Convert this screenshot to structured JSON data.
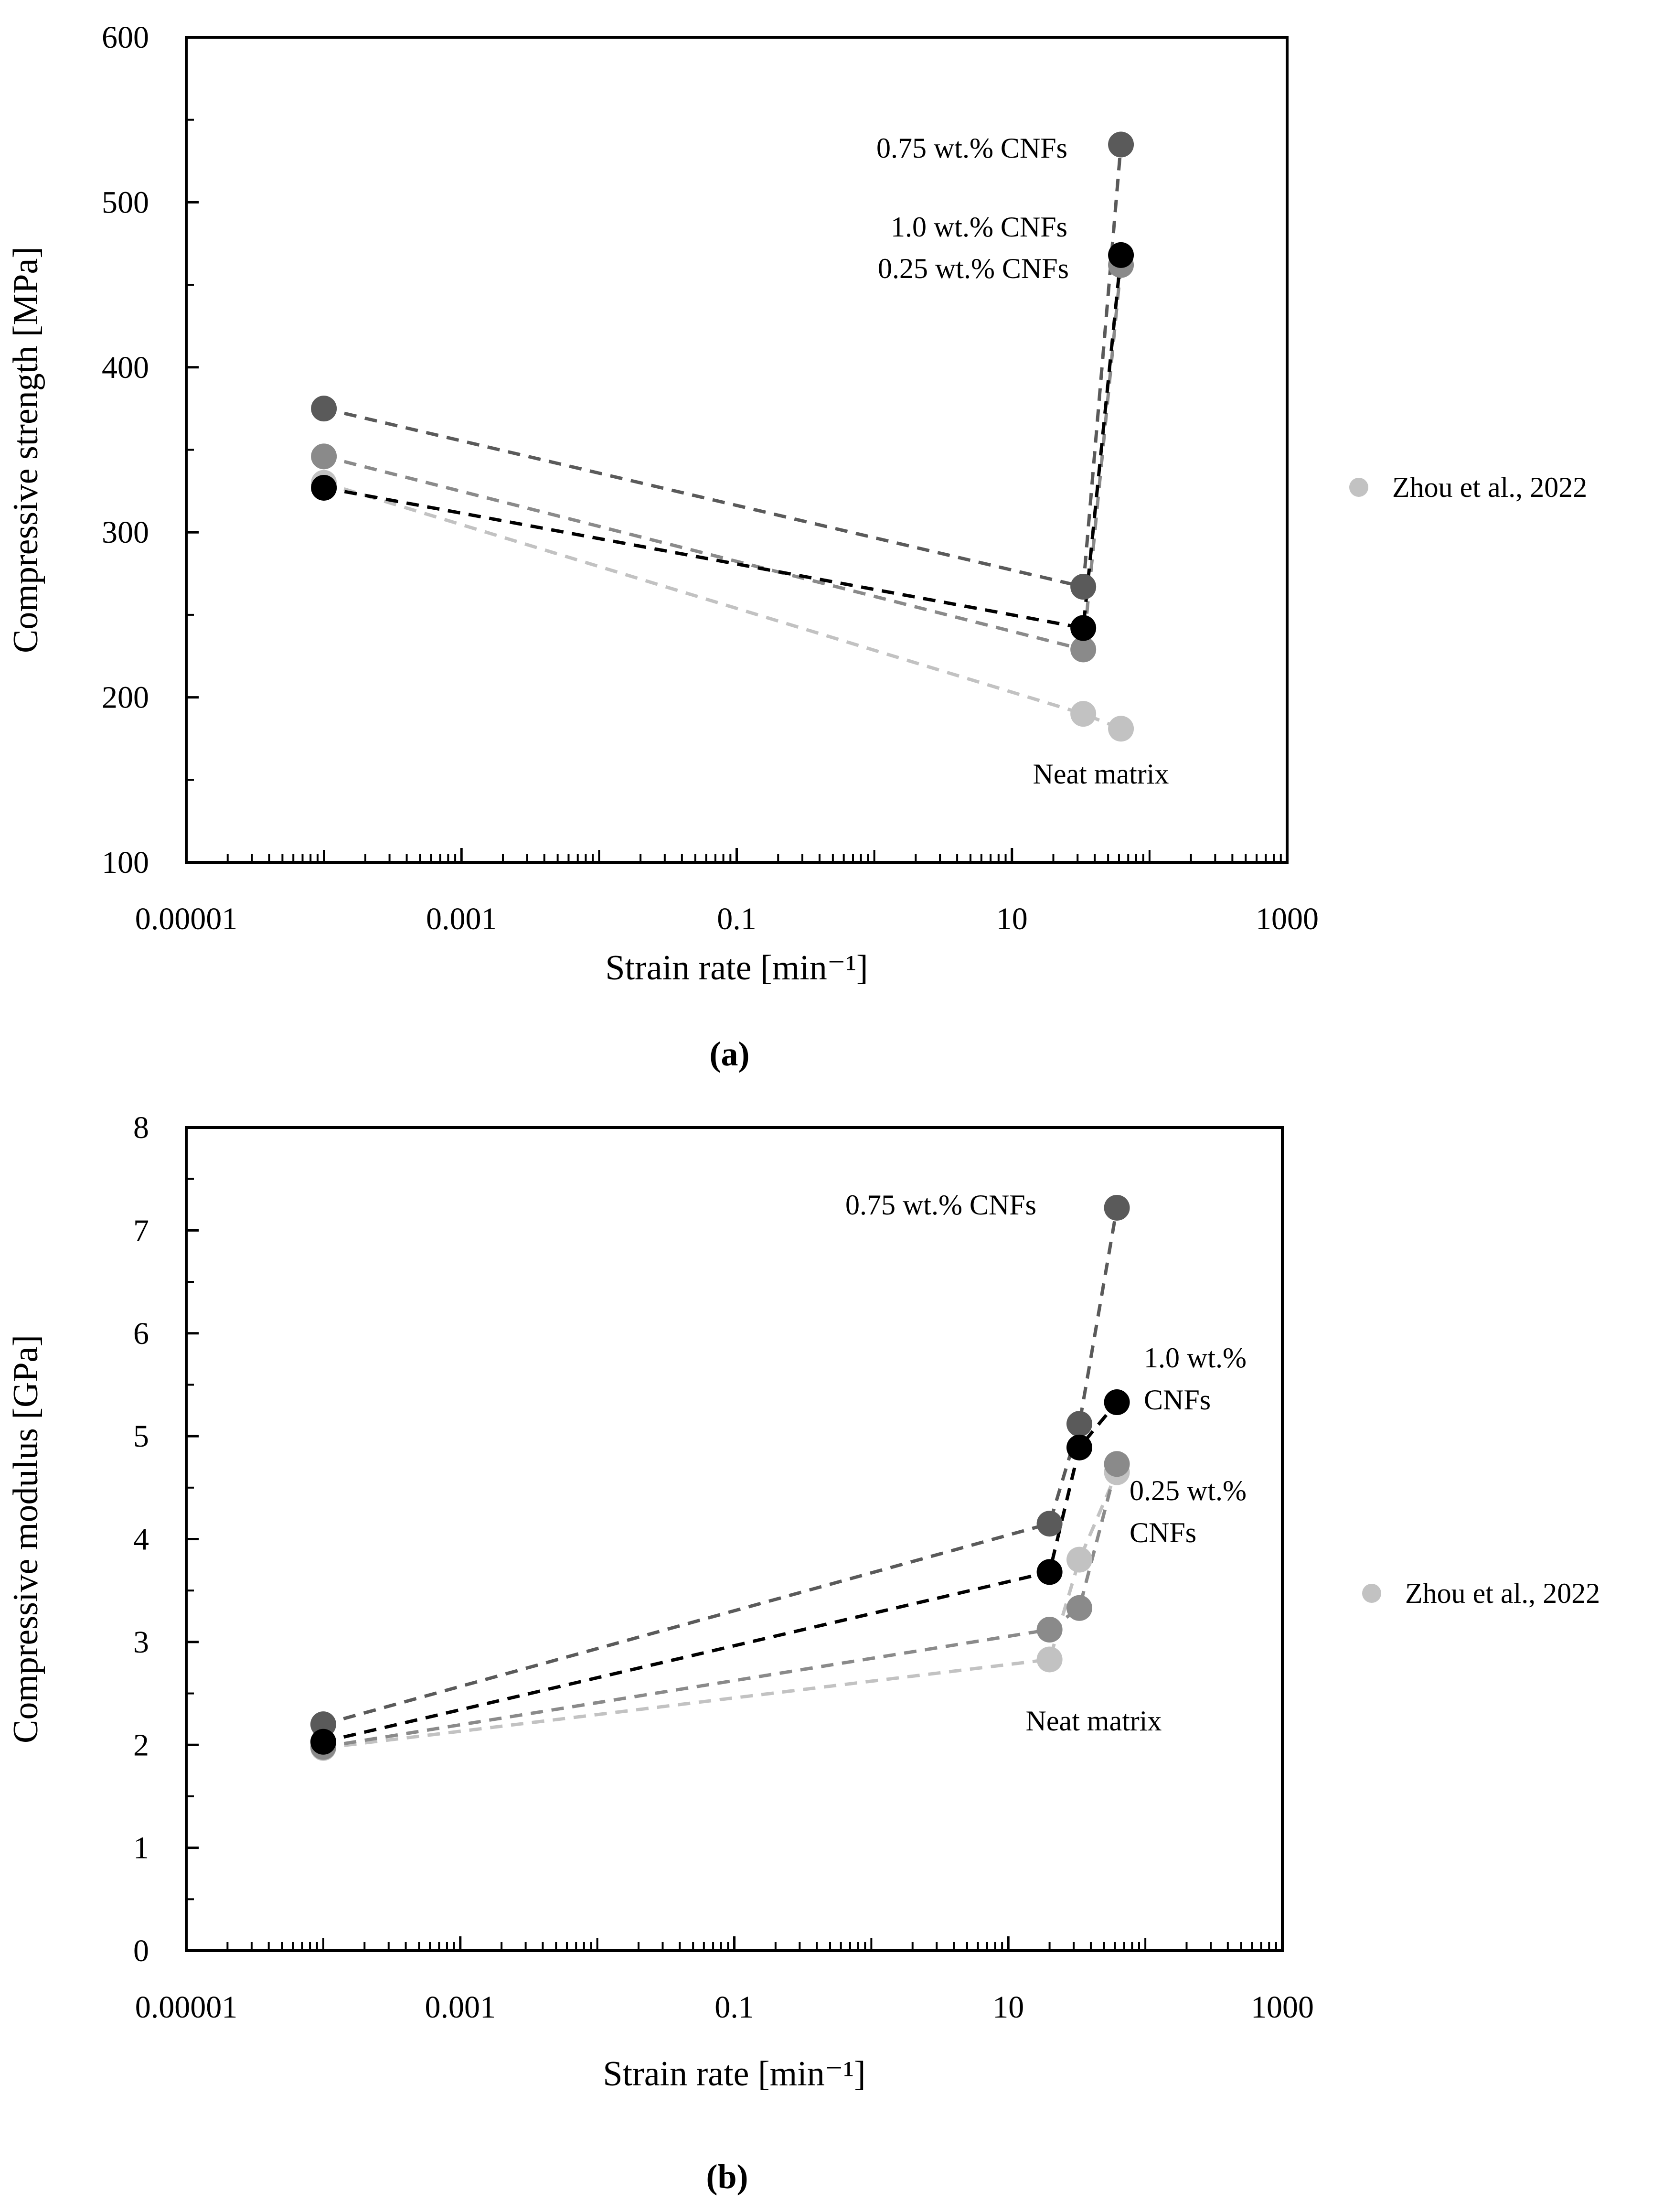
{
  "colors": {
    "neat": "#c2c2c2",
    "cnf025": "#8a8a8a",
    "cnf075": "#5a5a5a",
    "cnf10": "#000000",
    "text_075": "#707070",
    "text_025": "#9a9a9a",
    "text_neat": "#cfcfcf",
    "text_10": "#000000",
    "legend_marker": "#c2c2c2"
  },
  "chart_data": [
    {
      "type": "scatter",
      "panel_label": "(a)",
      "panel_label_bold": "a",
      "xlabel": "Strain rate [min⁻¹]",
      "ylabel": "Compressive strength [MPa]",
      "xscale": "log",
      "xlim": [
        1e-05,
        1000
      ],
      "ylim": [
        100,
        600
      ],
      "xticks": [
        {
          "value": 1e-05,
          "label": "0.00001"
        },
        {
          "value": 0.001,
          "label": "0.001"
        },
        {
          "value": 0.1,
          "label": "0.1"
        },
        {
          "value": 10,
          "label": "10"
        },
        {
          "value": 1000,
          "label": "1000"
        }
      ],
      "yticks": [
        {
          "value": 100,
          "label": "100"
        },
        {
          "value": 200,
          "label": "200"
        },
        {
          "value": 300,
          "label": "300"
        },
        {
          "value": 400,
          "label": "400"
        },
        {
          "value": 500,
          "label": "500"
        },
        {
          "value": 600,
          "label": "600"
        }
      ],
      "legend": {
        "label": "Zhou et al., 2022",
        "placement": "right"
      },
      "series": [
        {
          "key": "neat",
          "points": [
            [
              0.0001,
              330
            ],
            [
              33,
              190
            ],
            [
              62,
              181
            ]
          ]
        },
        {
          "key": "cnf025",
          "points": [
            [
              0.0001,
              346
            ],
            [
              33,
              229
            ],
            [
              62,
              462
            ]
          ]
        },
        {
          "key": "cnf075",
          "points": [
            [
              0.0001,
              375
            ],
            [
              33,
              267
            ],
            [
              62,
              535
            ]
          ]
        },
        {
          "key": "cnf10",
          "points": [
            [
              0.0001,
              327
            ],
            [
              33,
              242
            ],
            [
              62,
              468
            ]
          ]
        }
      ],
      "annotations": [
        {
          "text": "0.75 wt.% CNFs",
          "color_key": "text_075",
          "lines": [
            "0.75 wt.% CNFs"
          ]
        },
        {
          "text": "1.0 wt.% CNFs",
          "color_key": "text_10",
          "lines": [
            "1.0 wt.% CNFs"
          ]
        },
        {
          "text": "0.25 wt.% CNFs",
          "color_key": "text_025",
          "lines": [
            "0.25 wt.% CNFs"
          ]
        },
        {
          "text": "Neat matrix",
          "color_key": "text_neat",
          "lines": [
            "Neat matrix"
          ]
        }
      ]
    },
    {
      "type": "scatter",
      "panel_label": "(b)",
      "panel_label_bold": "b",
      "xlabel": "Strain rate [min⁻¹]",
      "ylabel": "Compressive modulus [GPa]",
      "xscale": "log",
      "xlim": [
        1e-05,
        1000
      ],
      "ylim": [
        0,
        8
      ],
      "xticks": [
        {
          "value": 1e-05,
          "label": "0.00001"
        },
        {
          "value": 0.001,
          "label": "0.001"
        },
        {
          "value": 0.1,
          "label": "0.1"
        },
        {
          "value": 10,
          "label": "10"
        },
        {
          "value": 1000,
          "label": "1000"
        }
      ],
      "yticks": [
        {
          "value": 0,
          "label": "0"
        },
        {
          "value": 1,
          "label": "1"
        },
        {
          "value": 2,
          "label": "2"
        },
        {
          "value": 3,
          "label": "3"
        },
        {
          "value": 4,
          "label": "4"
        },
        {
          "value": 5,
          "label": "5"
        },
        {
          "value": 6,
          "label": "6"
        },
        {
          "value": 7,
          "label": "7"
        },
        {
          "value": 8,
          "label": "8"
        }
      ],
      "legend": {
        "label": "Zhou et al., 2022",
        "placement": "right"
      },
      "series": [
        {
          "key": "neat",
          "points": [
            [
              0.0001,
              1.97
            ],
            [
              20,
              2.83
            ],
            [
              33,
              3.8
            ],
            [
              62,
              4.65
            ]
          ]
        },
        {
          "key": "cnf025",
          "points": [
            [
              0.0001,
              1.98
            ],
            [
              20,
              3.12
            ],
            [
              33,
              3.33
            ],
            [
              62,
              4.73
            ]
          ]
        },
        {
          "key": "cnf075",
          "points": [
            [
              0.0001,
              2.2
            ],
            [
              20,
              4.15
            ],
            [
              33,
              5.12
            ],
            [
              62,
              7.22
            ]
          ]
        },
        {
          "key": "cnf10",
          "points": [
            [
              0.0001,
              2.03
            ],
            [
              20,
              3.68
            ],
            [
              33,
              4.89
            ],
            [
              62,
              5.33
            ]
          ]
        }
      ],
      "annotations": [
        {
          "text": "0.75 wt.% CNFs",
          "color_key": "text_075",
          "lines": [
            "0.75 wt.% CNFs"
          ]
        },
        {
          "text": "1.0 wt.% CNFs",
          "color_key": "text_10",
          "lines": [
            "1.0 wt.%",
            "CNFs"
          ]
        },
        {
          "text": "0.25 wt.% CNFs",
          "color_key": "text_025",
          "lines": [
            "0.25 wt.%",
            "CNFs"
          ]
        },
        {
          "text": "Neat matrix",
          "color_key": "text_neat",
          "lines": [
            "Neat matrix"
          ]
        }
      ]
    }
  ]
}
